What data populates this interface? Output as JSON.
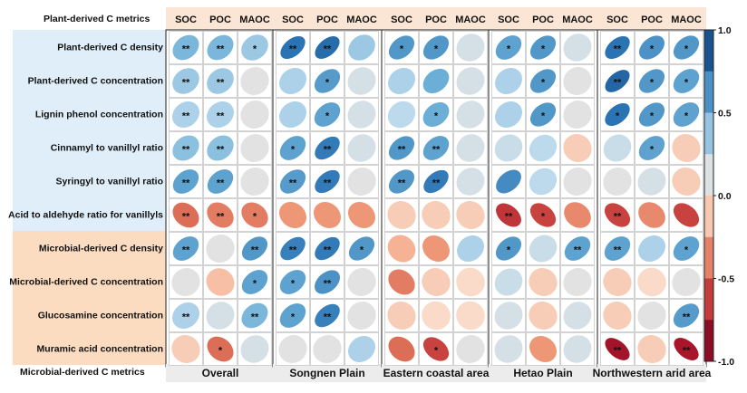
{
  "chart_data": {
    "type": "heatmap",
    "top_axis_title": "Plant-derived C metrics",
    "bottom_axis_title": "Microbial-derived C metrics",
    "panels": [
      "Overall",
      "Songnen Plain",
      "Eastern coastal area",
      "Hetao Plain",
      "Northwestern arid area"
    ],
    "columns": [
      "SOC",
      "POC",
      "MAOC"
    ],
    "rows": [
      "Plant-derived C density",
      "Plant-derived C concentration",
      "Lignin phenol concentration",
      "Cinnamyl to vanillyl ratio",
      "Syringyl to vanillyl ratio",
      "Acid to aldehyde ratio for vanillyls",
      "Microbial-derived C density",
      "Microbial-derived C concentration",
      "Glucosamine concentration",
      "Muramic acid concentration"
    ],
    "row_groups": [
      {
        "name": "plant",
        "rows": [
          0,
          1,
          2,
          3,
          4,
          5
        ],
        "color": "#dfeef8"
      },
      {
        "name": "microbial",
        "rows": [
          6,
          7,
          8,
          9
        ],
        "color": "#fbdcc0"
      }
    ],
    "colorbar": {
      "min": -1.0,
      "max": 1.0,
      "ticks": [
        "1.0",
        "0.5",
        "0.0",
        "-0.5",
        "-1.0"
      ]
    },
    "values": [
      [
        [
          0.45,
          0.45,
          0.35
        ],
        [
          0.75,
          0.78,
          0.35
        ],
        [
          0.6,
          0.6,
          0.15
        ],
        [
          0.55,
          0.6,
          0.15
        ],
        [
          0.75,
          0.62,
          0.6
        ]
      ],
      [
        [
          0.35,
          0.35,
          0.1
        ],
        [
          0.3,
          0.58,
          0.15
        ],
        [
          0.3,
          0.5,
          0.15
        ],
        [
          0.3,
          0.6,
          0.1
        ],
        [
          0.8,
          0.6,
          0.55
        ]
      ],
      [
        [
          0.3,
          0.3,
          0.1
        ],
        [
          0.3,
          0.55,
          0.15
        ],
        [
          0.25,
          0.5,
          0.15
        ],
        [
          0.3,
          0.6,
          0.1
        ],
        [
          0.75,
          0.6,
          0.55
        ]
      ],
      [
        [
          0.4,
          0.4,
          0.1
        ],
        [
          0.55,
          0.72,
          0.15
        ],
        [
          0.6,
          0.55,
          0.15
        ],
        [
          0.2,
          0.25,
          -0.1
        ],
        [
          0.2,
          0.55,
          -0.1
        ]
      ],
      [
        [
          0.55,
          0.55,
          0.1
        ],
        [
          0.58,
          0.72,
          0.1
        ],
        [
          0.6,
          0.72,
          0.15
        ],
        [
          0.65,
          0.25,
          0.1
        ],
        [
          0.1,
          0.15,
          -0.1
        ]
      ],
      [
        [
          -0.45,
          -0.4,
          -0.4
        ],
        [
          -0.3,
          -0.3,
          -0.3
        ],
        [
          -0.1,
          -0.1,
          -0.1
        ],
        [
          -0.65,
          -0.6,
          -0.35
        ],
        [
          -0.6,
          -0.35,
          -0.6
        ]
      ],
      [
        [
          0.55,
          0.1,
          0.6
        ],
        [
          0.7,
          0.72,
          0.6
        ],
        [
          -0.2,
          -0.3,
          0.3
        ],
        [
          0.6,
          0.2,
          0.55
        ],
        [
          0.55,
          0.3,
          0.55
        ]
      ],
      [
        [
          0.1,
          -0.15,
          0.55
        ],
        [
          0.55,
          0.62,
          0.1
        ],
        [
          -0.4,
          -0.1,
          -0.05
        ],
        [
          0.2,
          -0.1,
          0.1
        ],
        [
          -0.1,
          -0.05,
          0.1
        ]
      ],
      [
        [
          0.3,
          0.15,
          0.45
        ],
        [
          0.55,
          0.7,
          0.1
        ],
        [
          -0.1,
          -0.05,
          -0.05
        ],
        [
          0.15,
          -0.1,
          0.15
        ],
        [
          -0.1,
          0.1,
          0.58
        ]
      ],
      [
        [
          -0.1,
          -0.45,
          0.15
        ],
        [
          0.1,
          0.1,
          0.3
        ],
        [
          -0.45,
          -0.6,
          0.1
        ],
        [
          0.15,
          -0.3,
          0.15
        ],
        [
          -0.8,
          -0.1,
          -0.78
        ]
      ]
    ],
    "stars": [
      [
        [
          "**",
          "**",
          "*"
        ],
        [
          "**",
          "**",
          ""
        ],
        [
          "*",
          "*",
          ""
        ],
        [
          "*",
          "*",
          ""
        ],
        [
          "**",
          "*",
          "*"
        ]
      ],
      [
        [
          "**",
          "**",
          ""
        ],
        [
          "",
          "*",
          ""
        ],
        [
          "",
          "",
          ""
        ],
        [
          "",
          "*",
          ""
        ],
        [
          "**",
          "*",
          "*"
        ]
      ],
      [
        [
          "**",
          "**",
          ""
        ],
        [
          "",
          "*",
          ""
        ],
        [
          "",
          "*",
          ""
        ],
        [
          "",
          "*",
          ""
        ],
        [
          "*",
          "*",
          "*"
        ]
      ],
      [
        [
          "**",
          "**",
          ""
        ],
        [
          "*",
          "**",
          ""
        ],
        [
          "**",
          "**",
          ""
        ],
        [
          "",
          "",
          ""
        ],
        [
          "",
          "*",
          ""
        ]
      ],
      [
        [
          "**",
          "**",
          ""
        ],
        [
          "**",
          "**",
          ""
        ],
        [
          "**",
          "**",
          ""
        ],
        [
          "",
          "",
          ""
        ],
        [
          "",
          "",
          ""
        ]
      ],
      [
        [
          "**",
          "**",
          "*"
        ],
        [
          "",
          "",
          ""
        ],
        [
          "",
          "",
          ""
        ],
        [
          "**",
          "*",
          ""
        ],
        [
          "**",
          "",
          ""
        ]
      ],
      [
        [
          "**",
          "",
          "**"
        ],
        [
          "**",
          "**",
          "*"
        ],
        [
          "",
          "",
          ""
        ],
        [
          "*",
          "",
          "**"
        ],
        [
          "**",
          "",
          "*"
        ]
      ],
      [
        [
          "",
          "",
          "*"
        ],
        [
          "*",
          "**",
          ""
        ],
        [
          "",
          "",
          ""
        ],
        [
          "",
          "",
          ""
        ],
        [
          "",
          "",
          ""
        ]
      ],
      [
        [
          "**",
          "",
          "**"
        ],
        [
          "*",
          "**",
          ""
        ],
        [
          "",
          "",
          ""
        ],
        [
          "",
          "",
          ""
        ],
        [
          "",
          "",
          "**"
        ]
      ],
      [
        [
          "",
          "*",
          ""
        ],
        [
          "",
          "",
          ""
        ],
        [
          "",
          "*",
          ""
        ],
        [
          "",
          "",
          ""
        ],
        [
          "**",
          "",
          "**"
        ]
      ]
    ]
  }
}
